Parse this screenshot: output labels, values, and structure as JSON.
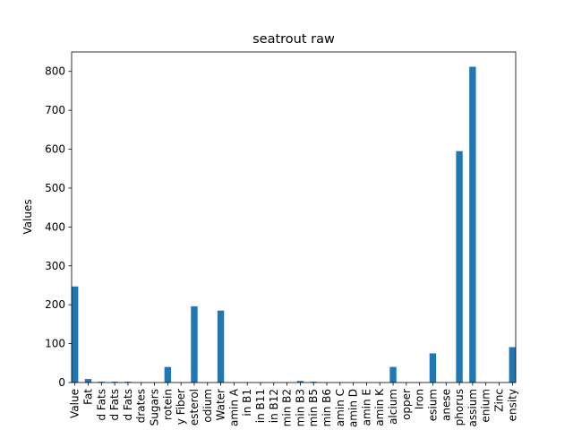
{
  "chart_data": {
    "type": "bar",
    "title": "seatrout raw",
    "xlabel": "",
    "ylabel": "Values",
    "ylim": [
      0,
      850
    ],
    "yticks": [
      0,
      100,
      200,
      300,
      400,
      500,
      600,
      700,
      800
    ],
    "grid": false,
    "legend": "none",
    "bar_color": "#1f77b4",
    "categories": [
      "Value",
      "Fat",
      "d Fats",
      "d Fats",
      "d Fats",
      "drates",
      "Sugars",
      "rotein",
      "y Fiber",
      "esterol",
      "odium",
      "Water",
      "amin A",
      "in B1",
      "in B11",
      "in B12",
      "min B2",
      "min B3",
      "min B5",
      "min B6",
      "amin C",
      "amin D",
      "amin E",
      "amin K",
      "alcium",
      "opper",
      "Iron",
      "esium",
      "anese",
      "phorus",
      "assium",
      "enium",
      "Zinc",
      "ensity"
    ],
    "values": [
      247,
      9,
      2,
      2,
      2,
      0,
      0,
      40,
      0,
      196,
      0,
      185,
      0,
      0,
      0,
      0,
      0,
      4,
      2,
      0,
      0,
      0,
      0,
      0,
      40,
      0,
      0,
      75,
      0,
      595,
      812,
      0,
      0,
      91
    ]
  }
}
